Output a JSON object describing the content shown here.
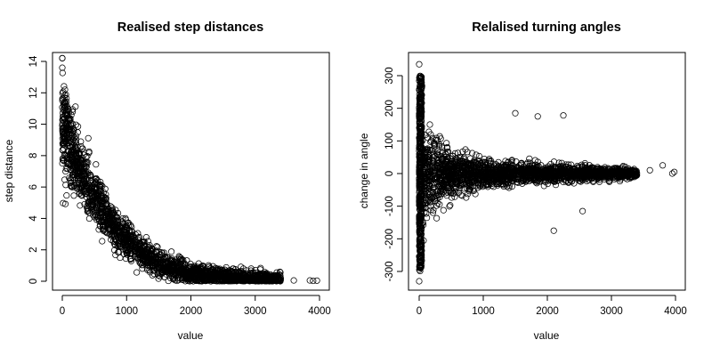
{
  "chart_data": [
    {
      "type": "scatter",
      "title": "Realised step distances",
      "xlabel": "value",
      "ylabel": "step distance",
      "xlim": [
        0,
        4000
      ],
      "ylim": [
        0,
        14
      ],
      "xticks": [
        0,
        1000,
        2000,
        3000,
        4000
      ],
      "yticks": [
        0,
        2,
        4,
        6,
        8,
        10,
        12,
        14
      ],
      "marker": "open-circle",
      "grid": false,
      "trend": {
        "description": "dense band decaying from ~10 at value 0 to ~0 near 3400",
        "points": [
          {
            "x": 0,
            "y": 10.2
          },
          {
            "x": 200,
            "y": 7.6
          },
          {
            "x": 500,
            "y": 5.3
          },
          {
            "x": 800,
            "y": 3.3
          },
          {
            "x": 1200,
            "y": 1.9
          },
          {
            "x": 1600,
            "y": 0.9
          },
          {
            "x": 2000,
            "y": 0.5
          },
          {
            "x": 2500,
            "y": 0.25
          },
          {
            "x": 3000,
            "y": 0.1
          },
          {
            "x": 3400,
            "y": 0.05
          }
        ]
      },
      "outliers": [
        {
          "x": 0,
          "y": 14.2
        },
        {
          "x": 0,
          "y": 13.6
        },
        {
          "x": 3600,
          "y": 0.05
        },
        {
          "x": 3850,
          "y": 0.05
        },
        {
          "x": 3900,
          "y": 0.02
        },
        {
          "x": 3960,
          "y": 0.04
        }
      ]
    },
    {
      "type": "scatter",
      "title": "Relalised turning angles",
      "xlabel": "value",
      "ylabel": "change in angle",
      "xlim": [
        0,
        4000
      ],
      "ylim": [
        -330,
        330
      ],
      "xticks": [
        0,
        1000,
        2000,
        3000,
        4000
      ],
      "yticks": [
        -300,
        -200,
        -100,
        0,
        100,
        200,
        300
      ],
      "marker": "open-circle",
      "grid": false,
      "trend": {
        "description": "symmetric band around 0 narrowing as value increases",
        "spread": [
          {
            "x": 0,
            "half_width": 330
          },
          {
            "x": 100,
            "half_width": 200
          },
          {
            "x": 500,
            "half_width": 100
          },
          {
            "x": 1000,
            "half_width": 60
          },
          {
            "x": 2000,
            "half_width": 40
          },
          {
            "x": 3000,
            "half_width": 30
          },
          {
            "x": 3400,
            "half_width": 20
          }
        ]
      },
      "outliers": [
        {
          "x": 0,
          "y": 335
        },
        {
          "x": 0,
          "y": -330
        },
        {
          "x": 1850,
          "y": 175
        },
        {
          "x": 2250,
          "y": 178
        },
        {
          "x": 1500,
          "y": 185
        },
        {
          "x": 2100,
          "y": -175
        },
        {
          "x": 2550,
          "y": -115
        },
        {
          "x": 3600,
          "y": 10
        },
        {
          "x": 3800,
          "y": 25
        },
        {
          "x": 3950,
          "y": 0
        },
        {
          "x": 3980,
          "y": 5
        }
      ]
    }
  ]
}
